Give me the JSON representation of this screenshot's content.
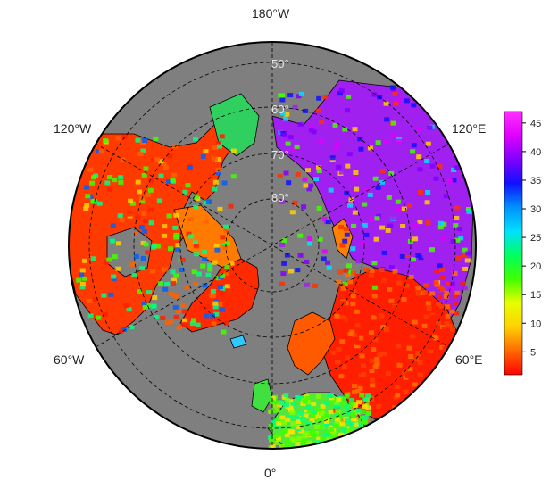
{
  "map": {
    "projection": "north-polar-stereographic",
    "background_color": "#7f7f7f",
    "land_outline_color": "#000000",
    "grid_style": "dashed",
    "lon_labels": {
      "top": "180°W",
      "upper_left": "120°W",
      "upper_right": "120°E",
      "lower_left": "60°W",
      "lower_right": "60°E",
      "bottom": "0°"
    },
    "lat_labels": [
      "50°",
      "60°",
      "70°",
      "80°"
    ]
  },
  "colorbar": {
    "ticks": [
      "5",
      "10",
      "15",
      "20",
      "25",
      "30",
      "35",
      "40",
      "45"
    ],
    "range": [
      1,
      47
    ],
    "colors": [
      "#ff0000",
      "#ff6a00",
      "#ffd000",
      "#e8ff00",
      "#40ff00",
      "#00ff60",
      "#00e0ff",
      "#0090ff",
      "#1010ff",
      "#8000ff",
      "#e000ff",
      "#ff30ff"
    ]
  }
}
